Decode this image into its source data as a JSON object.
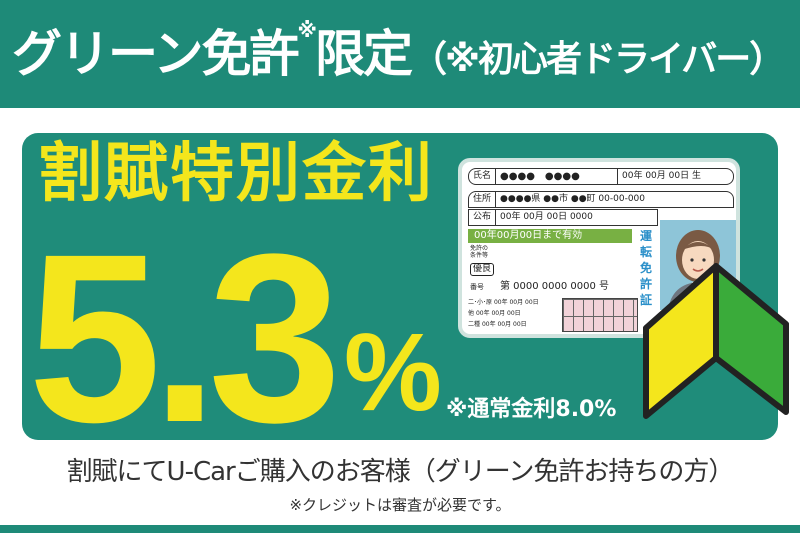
{
  "header": {
    "title_a": "グリーン免許",
    "title_mark": "※",
    "title_b": "限定",
    "title_c": "（※初心者ドライバー）"
  },
  "offer": {
    "label": "割賦特別金利",
    "rate": "5.3",
    "percent": "%",
    "normal_rate": "※通常金利8.0%"
  },
  "license_card": {
    "name_label": "氏名",
    "name_value": "●●●●　●●●●",
    "birth": "00年 00月 00日 生",
    "address_label": "住所",
    "address_value": "●●●●県 ●●市 ●●町 00-00-000",
    "issue_label": "公布",
    "issue_value": "00年 00月 00日 0000",
    "valid_until": "00年00月00日まで有効",
    "conditions_label": "免許の条件等",
    "excellent": "優良",
    "number_label": "番号",
    "number_value": "第 0000 0000 0000 号",
    "class_rows": [
      {
        "label": "二･小･原",
        "value": "00年 00月 00日"
      },
      {
        "label": "他",
        "value": "00年 00月 00日"
      },
      {
        "label": "二種",
        "value": "00年 00月 00日"
      }
    ],
    "vertical_title": "運転免許証"
  },
  "footer": {
    "line1": "割賦にてU-Carご購入のお客様（グリーン免許お持ちの方）",
    "line2": "※クレジットは審査が必要です。"
  },
  "colors": {
    "teal": "#1e8a78",
    "yellow": "#f4e61c",
    "license_green": "#78b043"
  }
}
